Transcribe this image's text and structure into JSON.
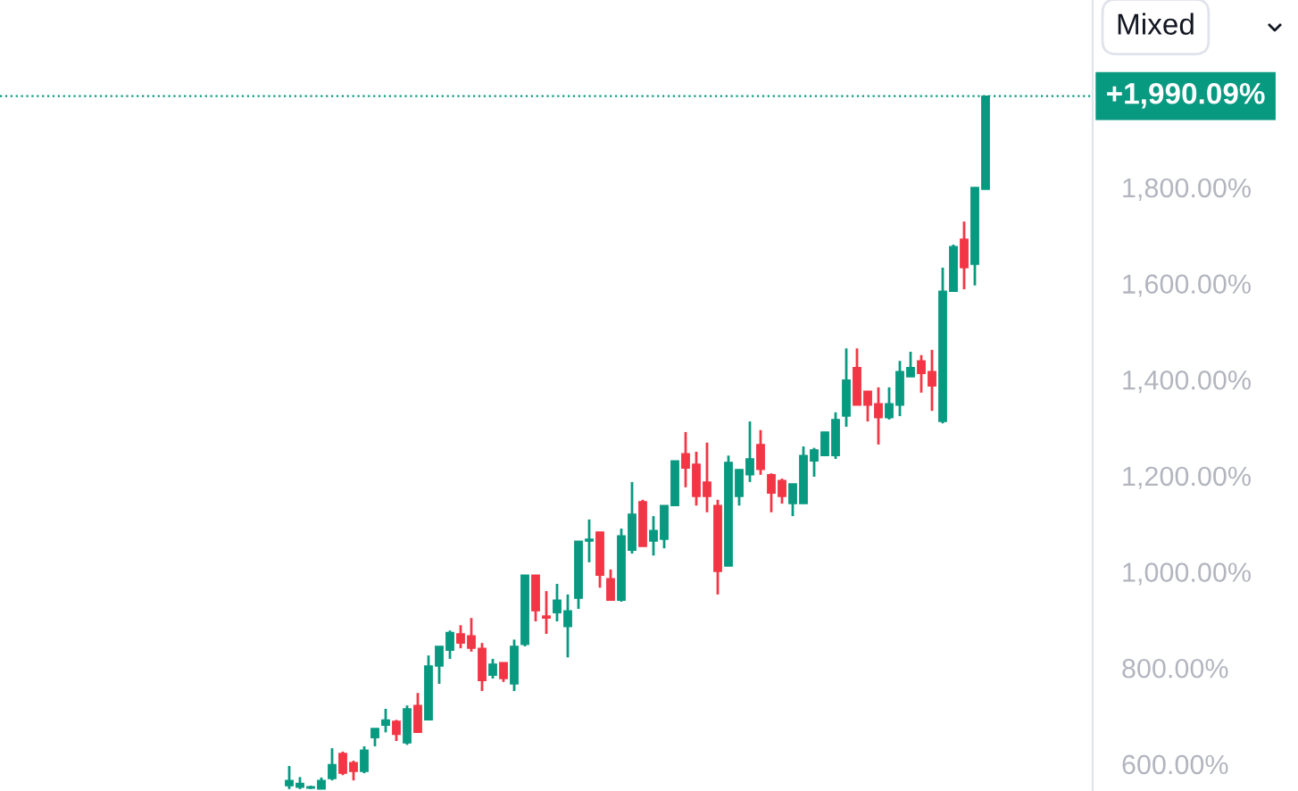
{
  "chart_data": {
    "type": "candlestick",
    "categories": [
      null,
      null,
      null,
      null,
      null,
      null,
      null,
      null,
      null,
      null,
      null,
      null,
      null,
      null,
      null,
      null,
      null,
      null,
      null,
      null,
      null,
      null,
      null,
      null,
      null,
      null,
      null,
      null,
      null,
      null,
      null,
      null,
      null,
      null,
      null,
      null,
      null,
      null,
      null,
      null,
      null,
      null,
      null,
      null,
      null,
      null,
      null,
      null,
      null,
      null,
      null,
      null,
      null,
      null,
      null,
      null,
      null,
      null,
      null,
      null,
      null,
      null,
      null,
      null,
      null,
      null
    ],
    "ohlc": [
      [
        555,
        596,
        548,
        566
      ],
      [
        552,
        573,
        548,
        560
      ],
      [
        550,
        555,
        548,
        553
      ],
      [
        548,
        572,
        548,
        566
      ],
      [
        570,
        633,
        566,
        599
      ],
      [
        622,
        626,
        577,
        581
      ],
      [
        603,
        607,
        566,
        585
      ],
      [
        585,
        637,
        581,
        629
      ],
      [
        655,
        674,
        637,
        674
      ],
      [
        681,
        715,
        666,
        692
      ],
      [
        689,
        692,
        648,
        662
      ],
      [
        644,
        722,
        640,
        715
      ],
      [
        722,
        748,
        666,
        666
      ],
      [
        692,
        826,
        692,
        804
      ],
      [
        804,
        845,
        767,
        845
      ],
      [
        837,
        878,
        819,
        874
      ],
      [
        871,
        889,
        841,
        852
      ],
      [
        867,
        904,
        834,
        841
      ],
      [
        841,
        852,
        752,
        774
      ],
      [
        785,
        819,
        778,
        808
      ],
      [
        811,
        811,
        771,
        778
      ],
      [
        767,
        859,
        752,
        845
      ],
      [
        849,
        993,
        845,
        993
      ],
      [
        993,
        993,
        897,
        919
      ],
      [
        908,
        960,
        871,
        904
      ],
      [
        915,
        975,
        897,
        941
      ],
      [
        886,
        953,
        822,
        919
      ],
      [
        945,
        1064,
        923,
        1064
      ],
      [
        1064,
        1109,
        1020,
        1068
      ],
      [
        1083,
        1083,
        967,
        993
      ],
      [
        986,
        1005,
        941,
        941
      ],
      [
        941,
        1090,
        938,
        1075
      ],
      [
        1045,
        1187,
        1038,
        1120
      ],
      [
        1146,
        1150,
        1053,
        1053
      ],
      [
        1064,
        1116,
        1034,
        1086
      ],
      [
        1068,
        1138,
        1049,
        1138
      ],
      [
        1138,
        1231,
        1138,
        1231
      ],
      [
        1246,
        1291,
        1176,
        1216
      ],
      [
        1224,
        1250,
        1138,
        1157
      ],
      [
        1187,
        1269,
        1124,
        1157
      ],
      [
        1138,
        1150,
        953,
        1001
      ],
      [
        1012,
        1242,
        1012,
        1228
      ],
      [
        1157,
        1213,
        1138,
        1213
      ],
      [
        1202,
        1313,
        1187,
        1235
      ],
      [
        1265,
        1295,
        1202,
        1213
      ],
      [
        1202,
        1205,
        1124,
        1164
      ],
      [
        1190,
        1194,
        1142,
        1157
      ],
      [
        1142,
        1183,
        1116,
        1183
      ],
      [
        1142,
        1261,
        1142,
        1242
      ],
      [
        1231,
        1258,
        1198,
        1254
      ],
      [
        1242,
        1291,
        1242,
        1291
      ],
      [
        1242,
        1332,
        1235,
        1317
      ],
      [
        1324,
        1465,
        1302,
        1399
      ],
      [
        1425,
        1465,
        1347,
        1347
      ],
      [
        1376,
        1376,
        1313,
        1347
      ],
      [
        1350,
        1384,
        1265,
        1321
      ],
      [
        1321,
        1384,
        1317,
        1350
      ],
      [
        1347,
        1439,
        1324,
        1417
      ],
      [
        1406,
        1458,
        1406,
        1425
      ],
      [
        1439,
        1451,
        1373,
        1413
      ],
      [
        1417,
        1462,
        1335,
        1387
      ],
      [
        1313,
        1633,
        1309,
        1584
      ],
      [
        1584,
        1681,
        1584,
        1677
      ],
      [
        1692,
        1729,
        1588,
        1633
      ],
      [
        1640,
        1800,
        1596,
        1800
      ],
      [
        1796,
        1990.09,
        1796,
        1990.09
      ]
    ],
    "colors": [
      "#089981",
      "#089981",
      "#089981",
      "#089981",
      "#089981",
      "#f23645",
      "#f23645",
      "#089981",
      "#089981",
      "#089981",
      "#f23645",
      "#089981",
      "#f23645",
      "#089981",
      "#089981",
      "#089981",
      "#f23645",
      "#f23645",
      "#f23645",
      "#089981",
      "#f23645",
      "#089981",
      "#089981",
      "#f23645",
      "#f23645",
      "#089981",
      "#089981",
      "#089981",
      "#089981",
      "#f23645",
      "#f23645",
      "#089981",
      "#089981",
      "#f23645",
      "#089981",
      "#089981",
      "#089981",
      "#f23645",
      "#f23645",
      "#f23645",
      "#f23645",
      "#089981",
      "#089981",
      "#089981",
      "#f23645",
      "#f23645",
      "#f23645",
      "#089981",
      "#089981",
      "#089981",
      "#089981",
      "#089981",
      "#089981",
      "#f23645",
      "#f23645",
      "#f23645",
      "#089981",
      "#089981",
      "#089981",
      "#f23645",
      "#f23645",
      "#089981",
      "#089981",
      "#f23645",
      "#089981",
      "#089981"
    ],
    "ylim": [
      544,
      2190
    ],
    "yticks": [
      {
        "value": 600,
        "label": "600.00%"
      },
      {
        "value": 800,
        "label": "800.00%"
      },
      {
        "value": 1000,
        "label": "1,000.00%"
      },
      {
        "value": 1200,
        "label": "1,200.00%"
      },
      {
        "value": 1400,
        "label": "1,400.00%"
      },
      {
        "value": 1600,
        "label": "1,600.00%"
      },
      {
        "value": 1800,
        "label": "1,800.00%"
      }
    ],
    "ref_lines": [
      {
        "axis": "y",
        "value": 1990.09,
        "label": "+1,990.09%",
        "color": "#089981",
        "line_style": "dotted"
      }
    ],
    "annotations": [
      "Mixed"
    ],
    "grid": false,
    "tick_labels": "y"
  }
}
